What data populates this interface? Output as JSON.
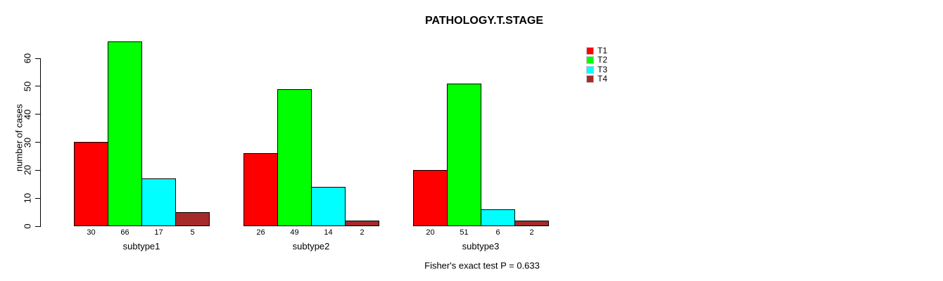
{
  "chart_data": {
    "type": "bar",
    "title": "PATHOLOGY.T.STAGE",
    "categories": [
      "subtype1",
      "subtype2",
      "subtype3"
    ],
    "series": [
      {
        "name": "T1",
        "color": "#FF0000",
        "values": [
          30,
          26,
          20
        ]
      },
      {
        "name": "T2",
        "color": "#00FF00",
        "values": [
          66,
          49,
          51
        ]
      },
      {
        "name": "T3",
        "color": "#00FFFF",
        "values": [
          17,
          14,
          6
        ]
      },
      {
        "name": "T4",
        "color": "#A52A2A",
        "values": [
          5,
          2,
          2
        ]
      }
    ],
    "xlabel": "",
    "ylabel": "number of cases",
    "ylim": [
      0,
      60
    ],
    "yticks": [
      0,
      10,
      20,
      30,
      40,
      50,
      60
    ],
    "bar_value_labels_shown": true,
    "annotation": "Fisher's exact test P = 0.633",
    "legend_position": "top-right",
    "grid": false,
    "background_color": "#FFFFFF",
    "bar_border_color": "#000000"
  }
}
